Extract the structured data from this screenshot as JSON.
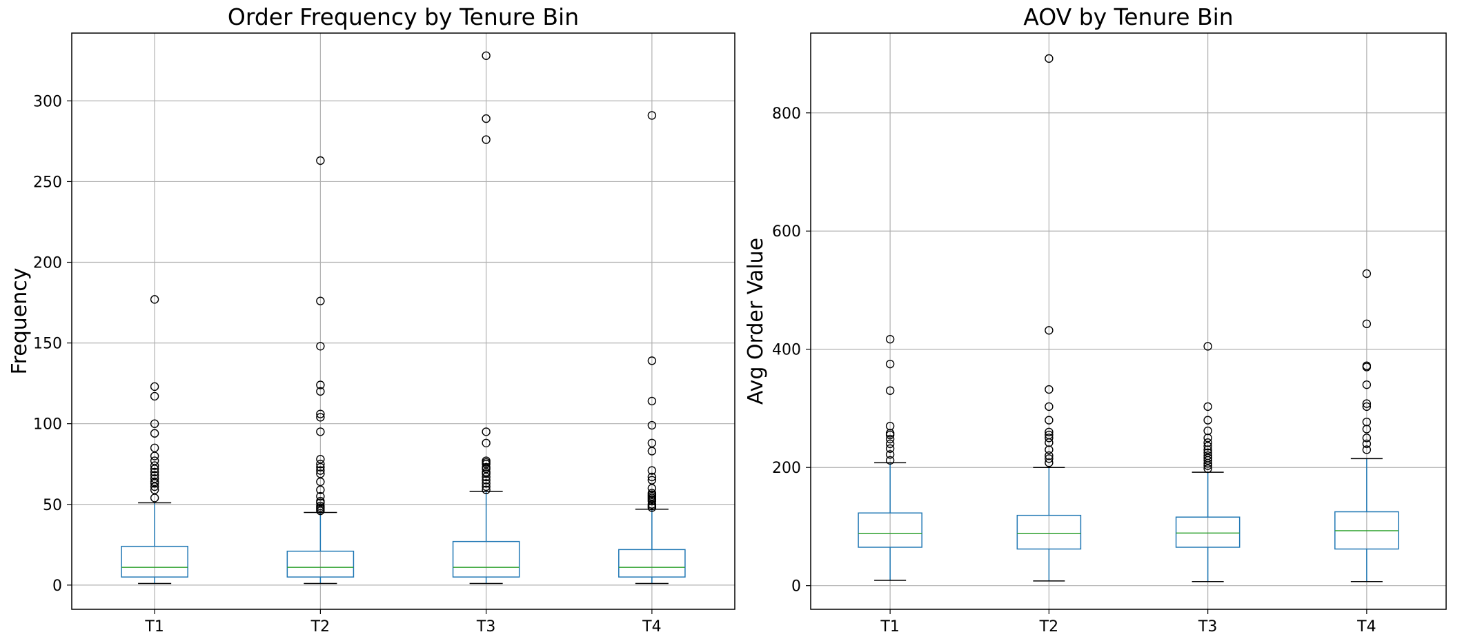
{
  "chart_data": [
    {
      "type": "boxplot",
      "title": "Order Frequency by Tenure Bin",
      "xlabel": "",
      "ylabel": "Frequency",
      "ylim": [
        -15,
        342
      ],
      "yticks": [
        0,
        50,
        100,
        150,
        200,
        250,
        300
      ],
      "grid": true,
      "colors": {
        "box": "#1f77b4",
        "median": "#2ca02c",
        "whisker": "#1f77b4",
        "cap": "#000000",
        "outlier": "#000000"
      },
      "categories": [
        "T1",
        "T2",
        "T3",
        "T4"
      ],
      "boxes": [
        {
          "category": "T1",
          "whislo": 1,
          "q1": 5,
          "median": 11,
          "q3": 24,
          "whishi": 51,
          "fliers": [
            54,
            59,
            61,
            63,
            64,
            66,
            68,
            70,
            72,
            74,
            77,
            80,
            85,
            94,
            100,
            117,
            123,
            177
          ]
        },
        {
          "category": "T2",
          "whislo": 1,
          "q1": 5,
          "median": 11,
          "q3": 21,
          "whishi": 45,
          "fliers": [
            46,
            47,
            48,
            49,
            51,
            52,
            55,
            59,
            64,
            69,
            71,
            73,
            75,
            78,
            95,
            104,
            106,
            120,
            124,
            148,
            176,
            263
          ]
        },
        {
          "category": "T3",
          "whislo": 1,
          "q1": 5,
          "median": 11,
          "q3": 27,
          "whishi": 58,
          "fliers": [
            59,
            61,
            63,
            65,
            67,
            69,
            70,
            72,
            73,
            75,
            76,
            77,
            88,
            95,
            276,
            289,
            328
          ]
        },
        {
          "category": "T4",
          "whislo": 1,
          "q1": 5,
          "median": 11,
          "q3": 22,
          "whishi": 47,
          "fliers": [
            48,
            49,
            50,
            52,
            53,
            54,
            55,
            56,
            57,
            60,
            65,
            67,
            71,
            83,
            88,
            99,
            114,
            139,
            291
          ]
        }
      ]
    },
    {
      "type": "boxplot",
      "title": "AOV by Tenure Bin",
      "xlabel": "",
      "ylabel": "Avg Order Value",
      "ylim": [
        -40,
        935
      ],
      "yticks": [
        0,
        200,
        400,
        600,
        800
      ],
      "grid": true,
      "colors": {
        "box": "#1f77b4",
        "median": "#2ca02c",
        "whisker": "#1f77b4",
        "cap": "#000000",
        "outlier": "#000000"
      },
      "categories": [
        "T1",
        "T2",
        "T3",
        "T4"
      ],
      "boxes": [
        {
          "category": "T1",
          "whislo": 9,
          "q1": 65,
          "median": 88,
          "q3": 123,
          "whishi": 208,
          "fliers": [
            212,
            222,
            232,
            240,
            248,
            255,
            258,
            270,
            330,
            375,
            417
          ]
        },
        {
          "category": "T2",
          "whislo": 8,
          "q1": 62,
          "median": 88,
          "q3": 119,
          "whishi": 200,
          "fliers": [
            208,
            215,
            220,
            230,
            242,
            250,
            255,
            260,
            280,
            303,
            332,
            432,
            892
          ]
        },
        {
          "category": "T3",
          "whislo": 7,
          "q1": 65,
          "median": 89,
          "q3": 116,
          "whishi": 192,
          "fliers": [
            198,
            203,
            207,
            212,
            216,
            220,
            225,
            230,
            236,
            242,
            250,
            262,
            280,
            303,
            405
          ]
        },
        {
          "category": "T4",
          "whislo": 7,
          "q1": 62,
          "median": 93,
          "q3": 125,
          "whishi": 215,
          "fliers": [
            230,
            240,
            250,
            265,
            277,
            303,
            308,
            340,
            370,
            372,
            443,
            528
          ]
        }
      ]
    }
  ]
}
